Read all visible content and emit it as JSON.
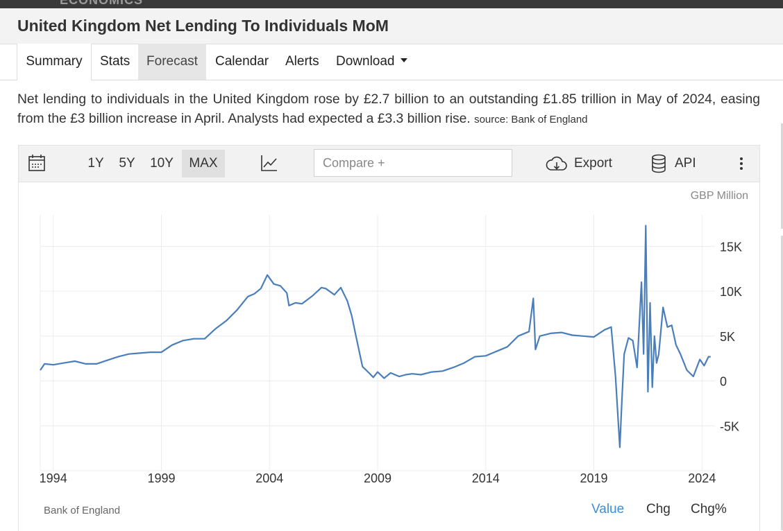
{
  "brand": "ECONOMICS",
  "page_title": "United Kingdom Net Lending To Individuals MoM",
  "tabs": [
    {
      "label": "Summary"
    },
    {
      "label": "Stats"
    },
    {
      "label": "Forecast"
    },
    {
      "label": "Calendar"
    },
    {
      "label": "Alerts"
    },
    {
      "label": "Download"
    }
  ],
  "description": {
    "text": "Net lending to individuals in the United Kingdom rose by £2.7 billion to an outstanding £1.85 trillion in May of 2024, easing from the £3 billion increase in April. Analysts had expected a £3.3 billion rise. ",
    "source": "source: Bank of England"
  },
  "toolbar": {
    "calendar_icon": "calendar-icon",
    "ranges": [
      "1Y",
      "5Y",
      "10Y",
      "MAX"
    ],
    "active_range": "MAX",
    "chart_type_icon": "line-chart-icon",
    "compare_placeholder": "Compare +",
    "export_label": "Export",
    "api_label": "API",
    "more_icon": "kebab-menu-icon"
  },
  "chart_data": {
    "type": "line",
    "unit": "GBP Million",
    "source": "Bank of England",
    "x_ticks": [
      "1994",
      "1999",
      "2004",
      "2009",
      "2014",
      "2019",
      "2024"
    ],
    "y_ticks": [
      "15K",
      "10K",
      "5K",
      "0",
      "-5K"
    ],
    "ylim": [
      -10000,
      18500
    ],
    "xlim": [
      1993.4,
      2024.6
    ],
    "line_color": "#4a7ebb",
    "grid": true,
    "series": [
      {
        "x": [
          1993.4,
          1993.6,
          1994.0,
          1994.5,
          1995.0,
          1995.5,
          1996.0,
          1996.5,
          1997.0,
          1997.5,
          1998.0,
          1998.5,
          1999.0,
          1999.5,
          2000.0,
          2000.5,
          2001.0,
          2001.5,
          2002.0,
          2002.5,
          2003.0,
          2003.3,
          2003.6,
          2003.9,
          2004.2,
          2004.5,
          2004.8,
          2004.9,
          2005.2,
          2005.5,
          2006.0,
          2006.4,
          2006.6,
          2007.0,
          2007.3,
          2007.6,
          2007.8,
          2008.0,
          2008.3,
          2008.6,
          2008.8,
          2009.0,
          2009.3,
          2009.6,
          2010.0,
          2010.3,
          2010.6,
          2011.0,
          2011.5,
          2012.0,
          2012.5,
          2013.0,
          2013.5,
          2014.0,
          2014.5,
          2015.0,
          2015.5,
          2016.0,
          2016.2,
          2016.3,
          2016.5,
          2017.0,
          2017.5,
          2018.0,
          2018.5,
          2019.0,
          2019.5,
          2019.8,
          2020.0,
          2020.2,
          2020.3,
          2020.4,
          2020.6,
          2020.8,
          2021.0,
          2021.2,
          2021.3,
          2021.4,
          2021.5,
          2021.6,
          2021.7,
          2021.8,
          2021.9,
          2022.0,
          2022.2,
          2022.4,
          2022.6,
          2022.8,
          2023.0,
          2023.3,
          2023.6,
          2023.9,
          2024.1,
          2024.3,
          2024.4
        ],
        "y": [
          1200,
          1900,
          1800,
          2000,
          2200,
          1900,
          1900,
          2300,
          2700,
          3000,
          3100,
          3200,
          3200,
          4000,
          4500,
          4700,
          4700,
          5800,
          6700,
          7900,
          9400,
          9700,
          10300,
          11800,
          10800,
          10600,
          9800,
          8400,
          8700,
          8600,
          9500,
          10400,
          10300,
          9600,
          10400,
          8900,
          7300,
          5000,
          1600,
          900,
          400,
          1000,
          300,
          900,
          500,
          700,
          800,
          700,
          1000,
          1100,
          1500,
          2000,
          2700,
          2800,
          3300,
          3800,
          5000,
          5500,
          9200,
          3500,
          5000,
          5300,
          5400,
          5100,
          5000,
          4900,
          5700,
          6000,
          500,
          -7400,
          -2000,
          3000,
          4800,
          4500,
          1500,
          11000,
          3000,
          17300,
          -1200,
          8700,
          -700,
          5000,
          2000,
          3000,
          8200,
          6000,
          6200,
          4000,
          3000,
          1200,
          500,
          2400,
          1700,
          2700,
          2700
        ]
      }
    ]
  },
  "value_tabs": [
    "Value",
    "Chg",
    "Chg%"
  ],
  "active_value_tab": "Value"
}
